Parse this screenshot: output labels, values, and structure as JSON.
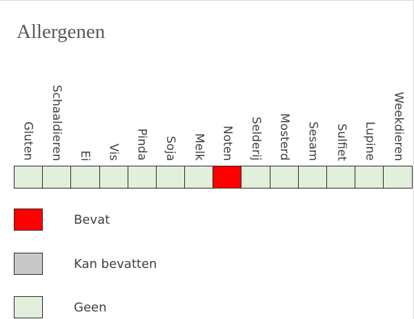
{
  "title": "Allergenen",
  "colors": {
    "contains": "#ff0000",
    "may_contain": "#c8c8c8",
    "none": "#e2efda"
  },
  "allergens": [
    {
      "label": "Gluten",
      "status": "none"
    },
    {
      "label": "Schaaldieren",
      "status": "none"
    },
    {
      "label": "Ei",
      "status": "none"
    },
    {
      "label": "Vis",
      "status": "none"
    },
    {
      "label": "Pinda",
      "status": "none"
    },
    {
      "label": "Soja",
      "status": "none"
    },
    {
      "label": "Melk",
      "status": "none"
    },
    {
      "label": "Noten",
      "status": "contains"
    },
    {
      "label": "Selderij",
      "status": "none"
    },
    {
      "label": "Mosterd",
      "status": "none"
    },
    {
      "label": "Sesam",
      "status": "none"
    },
    {
      "label": "Sulfiet",
      "status": "none"
    },
    {
      "label": "Lupine",
      "status": "none"
    },
    {
      "label": "Weekdieren",
      "status": "none"
    }
  ],
  "legend": [
    {
      "label": "Bevat",
      "status": "contains"
    },
    {
      "label": "Kan bevatten",
      "status": "may_contain"
    },
    {
      "label": "Geen",
      "status": "none"
    }
  ]
}
